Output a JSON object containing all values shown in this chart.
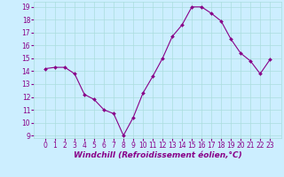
{
  "x": [
    0,
    1,
    2,
    3,
    4,
    5,
    6,
    7,
    8,
    9,
    10,
    11,
    12,
    13,
    14,
    15,
    16,
    17,
    18,
    19,
    20,
    21,
    22,
    23
  ],
  "y": [
    14.2,
    14.3,
    14.3,
    13.8,
    12.2,
    11.8,
    11.0,
    10.7,
    9.0,
    10.4,
    12.3,
    13.6,
    15.0,
    16.7,
    17.6,
    19.0,
    19.0,
    18.5,
    17.9,
    16.5,
    15.4,
    14.8,
    13.8,
    14.9
  ],
  "line_color": "#880088",
  "marker": "D",
  "marker_size": 2.0,
  "bg_color": "#cceeff",
  "grid_color": "#aadddd",
  "xlabel": "Windchill (Refroidissement éolien,°C)",
  "xlabel_fontsize": 6.5,
  "xlabel_color": "#880088",
  "tick_fontsize": 5.5,
  "tick_color": "#880088",
  "ylim": [
    8.8,
    19.4
  ],
  "yticks": [
    9,
    10,
    11,
    12,
    13,
    14,
    15,
    16,
    17,
    18,
    19
  ],
  "xticks": [
    0,
    1,
    2,
    3,
    4,
    5,
    6,
    7,
    8,
    9,
    10,
    11,
    12,
    13,
    14,
    15,
    16,
    17,
    18,
    19,
    20,
    21,
    22,
    23
  ],
  "figsize": [
    3.2,
    2.0
  ],
  "dpi": 100
}
